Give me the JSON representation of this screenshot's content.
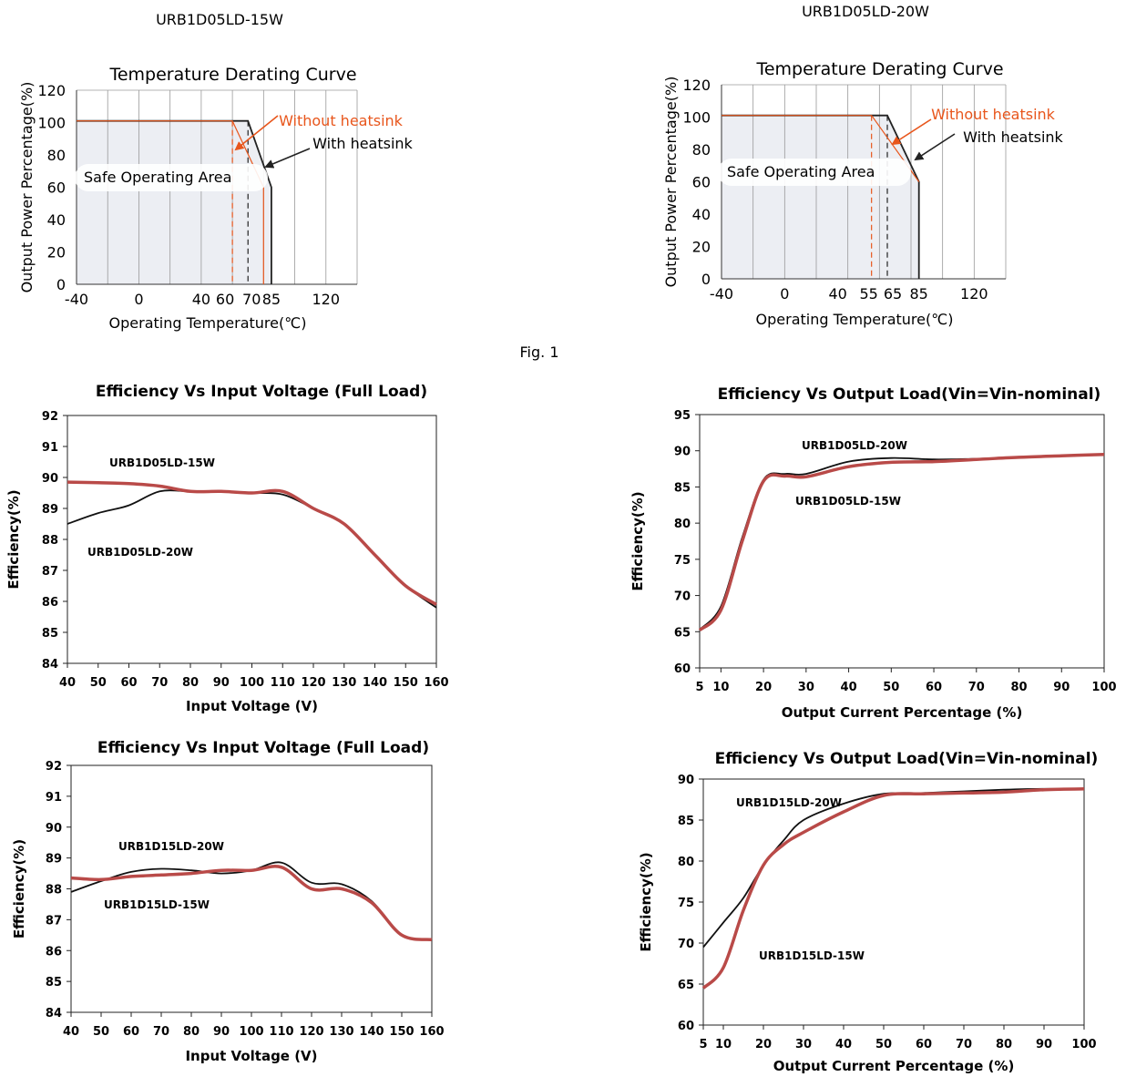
{
  "page": {
    "heading_left": "URB1D05LD-15W",
    "heading_right": "URB1D05LD-20W",
    "fig_caption": "Fig. 1"
  },
  "colors": {
    "with_heatsink": "#222222",
    "without_heatsink": "#e8561c",
    "safe_area_fill": "#eceef3",
    "series_black": "#111111",
    "series_red": "#b94a48",
    "grid": "#9a9a9a"
  },
  "chart_data": [
    {
      "id": "derate15",
      "type": "line",
      "title": "Temperature Derating Curve",
      "xlabel": "Operating Temperature(℃)",
      "ylabel": "Output Power Percentage(%)",
      "xlim": [
        -40,
        140
      ],
      "ylim": [
        0,
        120
      ],
      "x_ticks": [
        -40,
        0,
        40,
        60,
        70,
        85,
        120
      ],
      "y_ticks": [
        0,
        20,
        40,
        60,
        80,
        100,
        120
      ],
      "grid": "vertical",
      "safe_area_label": "Safe Operating Area",
      "series": [
        {
          "name": "With heatsink",
          "x": [
            -40,
            70,
            85,
            85
          ],
          "y": [
            101,
            101,
            60,
            0
          ]
        },
        {
          "name": "Without heatsink",
          "x": [
            -40,
            60,
            80,
            80
          ],
          "y": [
            101,
            101,
            60,
            0
          ]
        }
      ],
      "markers": [
        {
          "label": "Without heatsink",
          "x": 60
        },
        {
          "label": "With heatsink",
          "x": 70
        }
      ]
    },
    {
      "id": "derate20",
      "type": "line",
      "title": "Temperature Derating Curve",
      "xlabel": "Operating Temperature(℃)",
      "ylabel": "Output Power Percentage(%)",
      "xlim": [
        -40,
        140
      ],
      "ylim": [
        0,
        120
      ],
      "x_ticks": [
        -40,
        0,
        40,
        55,
        65,
        85,
        120
      ],
      "x_tick_labels": [
        "-40",
        "0",
        "40",
        "55",
        "65",
        "85",
        "120"
      ],
      "y_ticks": [
        0,
        20,
        40,
        60,
        80,
        100,
        120
      ],
      "grid": "vertical",
      "safe_area_label": "Safe Operating Area",
      "series": [
        {
          "name": "With heatsink",
          "x": [
            -40,
            65,
            85,
            85
          ],
          "y": [
            101,
            101,
            60,
            0
          ]
        },
        {
          "name": "Without heatsink",
          "x": [
            -40,
            55,
            85
          ],
          "y": [
            101,
            101,
            60
          ]
        }
      ],
      "markers": [
        {
          "label": "Without heatsink",
          "x": 55
        },
        {
          "label": "With heatsink",
          "x": 65
        }
      ]
    },
    {
      "id": "eff_vin_05",
      "type": "line",
      "title": "Efficiency Vs Input Voltage (Full Load)",
      "xlabel": "Input Voltage (V)",
      "ylabel": "Efficiency(%)",
      "xlim": [
        40,
        160
      ],
      "ylim": [
        84,
        92
      ],
      "x_ticks": [
        40,
        50,
        60,
        70,
        80,
        90,
        100,
        110,
        120,
        130,
        140,
        150,
        160
      ],
      "y_ticks": [
        84,
        85,
        86,
        87,
        88,
        89,
        90,
        91,
        92
      ],
      "series": [
        {
          "name": "URB1D05LD-20W",
          "color": "black",
          "x": [
            40,
            50,
            60,
            70,
            80,
            90,
            100,
            110,
            120,
            130,
            140,
            150,
            160
          ],
          "y": [
            88.5,
            88.85,
            89.1,
            89.55,
            89.55,
            89.55,
            89.5,
            89.45,
            89.0,
            88.5,
            87.5,
            86.5,
            85.8
          ]
        },
        {
          "name": "URB1D05LD-15W",
          "color": "red",
          "x": [
            40,
            50,
            60,
            70,
            80,
            90,
            100,
            110,
            120,
            130,
            140,
            150,
            160
          ],
          "y": [
            89.85,
            89.83,
            89.8,
            89.72,
            89.55,
            89.55,
            89.5,
            89.55,
            89.0,
            88.5,
            87.5,
            86.5,
            85.9
          ]
        }
      ],
      "annotations": [
        "URB1D05LD-15W",
        "URB1D05LD-20W"
      ]
    },
    {
      "id": "eff_load_05",
      "type": "line",
      "title": "Efficiency Vs Output Load(Vin=Vin-nominal)",
      "xlabel": "Output Current Percentage (%)",
      "ylabel": "Efficiency(%)",
      "xlim": [
        5,
        100
      ],
      "ylim": [
        60,
        95
      ],
      "x_ticks": [
        5,
        10,
        20,
        30,
        40,
        50,
        60,
        70,
        80,
        90,
        100
      ],
      "y_ticks": [
        60,
        65,
        70,
        75,
        80,
        85,
        90,
        95
      ],
      "series": [
        {
          "name": "URB1D05LD-20W",
          "color": "black",
          "x": [
            5,
            10,
            15,
            20,
            25,
            30,
            40,
            50,
            60,
            70,
            80,
            90,
            100
          ],
          "y": [
            65.3,
            68.5,
            78,
            86,
            86.8,
            86.8,
            88.5,
            89,
            88.8,
            88.9,
            89.1,
            89.3,
            89.5
          ]
        },
        {
          "name": "URB1D05LD-15W",
          "color": "red",
          "x": [
            5,
            10,
            15,
            20,
            25,
            30,
            40,
            50,
            60,
            70,
            80,
            90,
            100
          ],
          "y": [
            65.2,
            68,
            77.5,
            85.8,
            86.5,
            86.4,
            87.8,
            88.4,
            88.5,
            88.8,
            89.1,
            89.3,
            89.5
          ]
        }
      ],
      "annotations": [
        "URB1D05LD-20W",
        "URB1D05LD-15W"
      ]
    },
    {
      "id": "eff_vin_15",
      "type": "line",
      "title": "Efficiency Vs Input Voltage (Full Load)",
      "xlabel": "Input Voltage (V)",
      "ylabel": "Efficiency(%)",
      "xlim": [
        40,
        160
      ],
      "ylim": [
        84,
        92
      ],
      "x_ticks": [
        40,
        50,
        60,
        70,
        80,
        90,
        100,
        110,
        120,
        130,
        140,
        150,
        160
      ],
      "y_ticks": [
        84,
        85,
        86,
        87,
        88,
        89,
        90,
        91,
        92
      ],
      "series": [
        {
          "name": "URB1D15LD-20W",
          "color": "black",
          "x": [
            40,
            50,
            60,
            70,
            80,
            90,
            100,
            110,
            120,
            130,
            140,
            150,
            160
          ],
          "y": [
            87.9,
            88.25,
            88.55,
            88.65,
            88.6,
            88.5,
            88.6,
            88.85,
            88.2,
            88.15,
            87.6,
            86.5,
            86.35
          ]
        },
        {
          "name": "URB1D15LD-15W",
          "color": "red",
          "x": [
            40,
            50,
            60,
            70,
            80,
            90,
            100,
            110,
            120,
            130,
            140,
            150,
            160
          ],
          "y": [
            88.35,
            88.3,
            88.4,
            88.45,
            88.5,
            88.6,
            88.6,
            88.7,
            88.0,
            88.0,
            87.55,
            86.5,
            86.35
          ]
        }
      ],
      "annotations": [
        "URB1D15LD-20W",
        "URB1D15LD-15W"
      ]
    },
    {
      "id": "eff_load_15",
      "type": "line",
      "title": "Efficiency Vs Output Load(Vin=Vin-nominal)",
      "xlabel": "Output Current Percentage (%)",
      "ylabel": "Efficiency(%)",
      "xlim": [
        5,
        100
      ],
      "ylim": [
        60,
        90
      ],
      "x_ticks": [
        5,
        10,
        20,
        30,
        40,
        50,
        60,
        70,
        80,
        90,
        100
      ],
      "y_ticks": [
        60,
        65,
        70,
        75,
        80,
        85,
        90
      ],
      "series": [
        {
          "name": "URB1D15LD-20W",
          "color": "black",
          "x": [
            5,
            10,
            15,
            20,
            25,
            30,
            40,
            50,
            60,
            70,
            80,
            90,
            100
          ],
          "y": [
            69.5,
            72.5,
            75.5,
            79.5,
            82.5,
            85,
            87,
            88.2,
            88.3,
            88.5,
            88.7,
            88.8,
            88.8
          ]
        },
        {
          "name": "URB1D15LD-15W",
          "color": "red",
          "x": [
            5,
            10,
            15,
            20,
            25,
            30,
            40,
            50,
            60,
            70,
            80,
            90,
            100
          ],
          "y": [
            64.5,
            67,
            74,
            79.5,
            82,
            83.5,
            86,
            88,
            88.2,
            88.3,
            88.4,
            88.7,
            88.8
          ]
        }
      ],
      "annotations": [
        "URB1D15LD-20W",
        "URB1D15LD-15W"
      ]
    }
  ]
}
